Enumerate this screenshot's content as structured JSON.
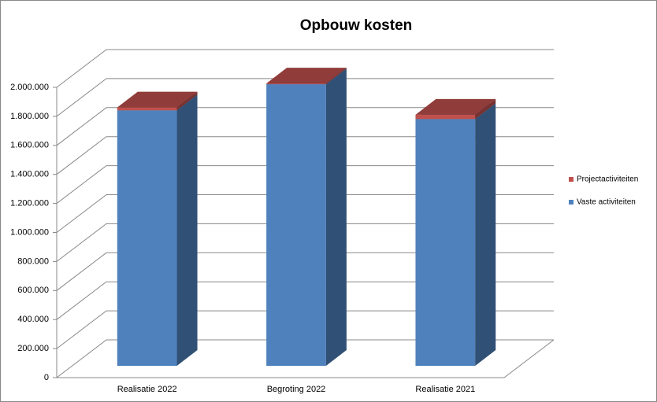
{
  "chart_data": {
    "type": "bar3d_stacked",
    "title": "Opbouw kosten",
    "categories": [
      "Realisatie 2022",
      "Begroting 2022",
      "Realisatie 2021"
    ],
    "series": [
      {
        "name": "Vaste activiteiten",
        "color": "#4f81bd",
        "values": [
          1760000,
          1940000,
          1700000
        ]
      },
      {
        "name": "Projectactiviteiten",
        "color": "#c0504d",
        "values": [
          20000,
          5000,
          30000
        ]
      }
    ],
    "ylim": [
      0,
      2000000
    ],
    "yticks": [
      0,
      {
        "value": 200000,
        "label": "200.000"
      },
      {
        "value": 400000,
        "label": "400.000"
      },
      {
        "value": 600000,
        "label": "600.000"
      },
      {
        "value": 800000,
        "label": "800.000"
      },
      {
        "value": 1000000,
        "label": "1.000.000"
      },
      {
        "value": 1200000,
        "label": "1.200.000"
      },
      {
        "value": 1400000,
        "label": "1.400.000"
      },
      {
        "value": 1600000,
        "label": "1.600.000"
      },
      {
        "value": 1800000,
        "label": "1.800.000"
      },
      {
        "value": 2000000,
        "label": "2.000.000"
      }
    ],
    "grid": true,
    "legend": "right"
  }
}
